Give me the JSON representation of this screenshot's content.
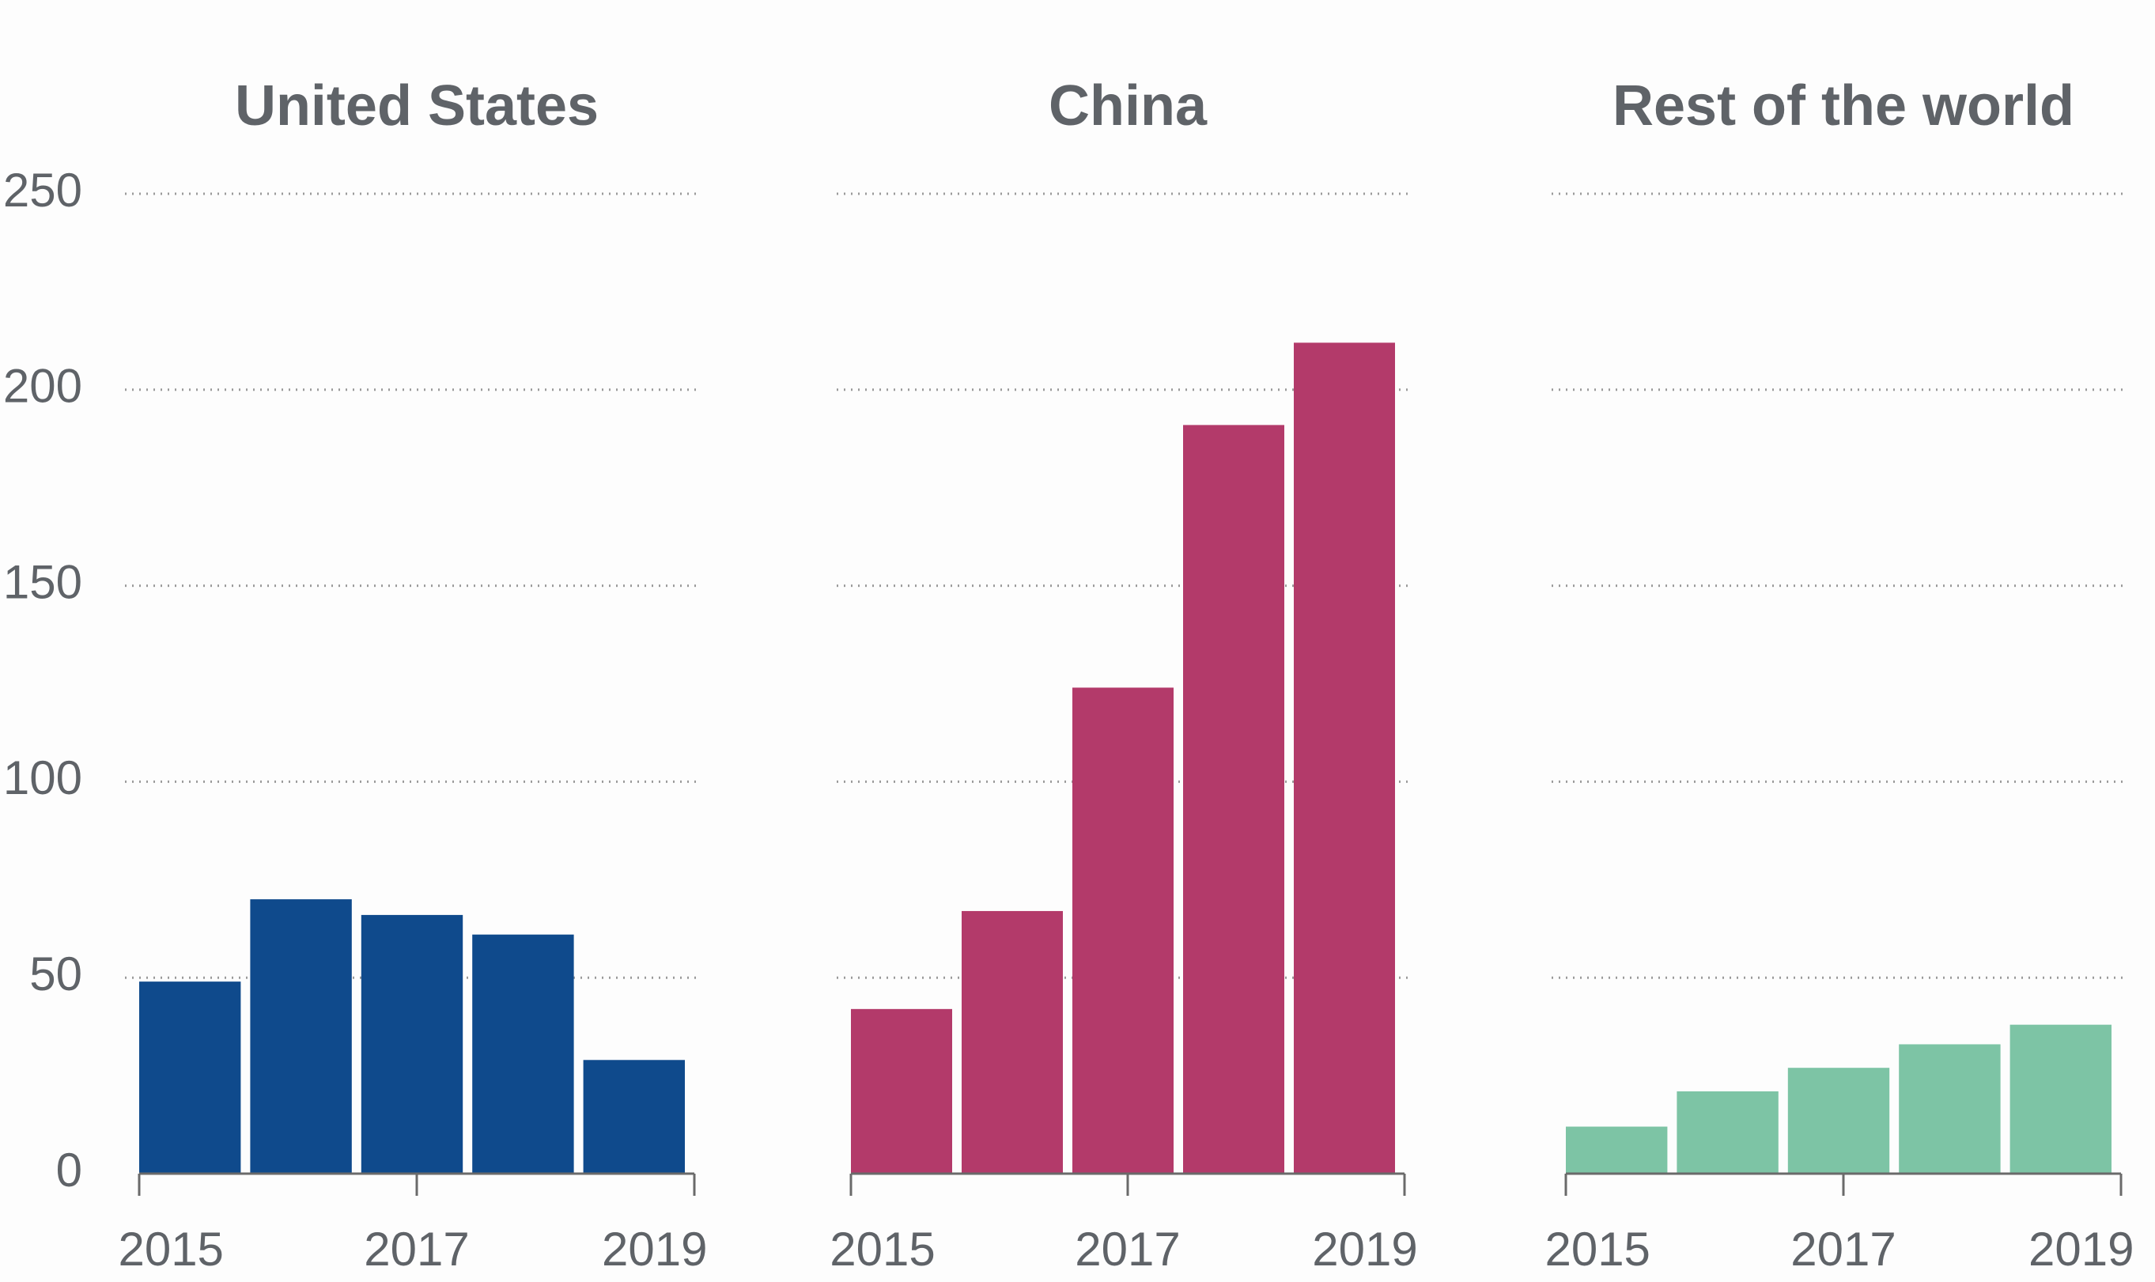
{
  "chart_data": [
    {
      "type": "bar",
      "title": "United States",
      "categories": [
        "2015",
        null,
        "2017",
        null,
        "2019"
      ],
      "values": [
        49,
        70,
        66,
        61,
        29
      ],
      "color": "#0f4a8c",
      "ylim": [
        0,
        250
      ],
      "yticks": [
        0,
        50,
        100,
        150,
        200,
        250
      ],
      "grid": true
    },
    {
      "type": "bar",
      "title": "China",
      "categories": [
        "2015",
        null,
        "2017",
        null,
        "2019"
      ],
      "values": [
        42,
        67,
        124,
        191,
        212
      ],
      "color": "#b33a6a",
      "ylim": [
        0,
        250
      ],
      "yticks": [
        0,
        50,
        100,
        150,
        200,
        250
      ],
      "grid": true
    },
    {
      "type": "bar",
      "title": "Rest of the world",
      "categories": [
        "2015",
        null,
        "2017",
        null,
        "2019"
      ],
      "values": [
        12,
        21,
        27,
        33,
        38
      ],
      "color": "#7dc4a5",
      "ylim": [
        0,
        250
      ],
      "yticks": [
        0,
        50,
        100,
        150,
        200,
        250
      ],
      "grid": true
    }
  ]
}
